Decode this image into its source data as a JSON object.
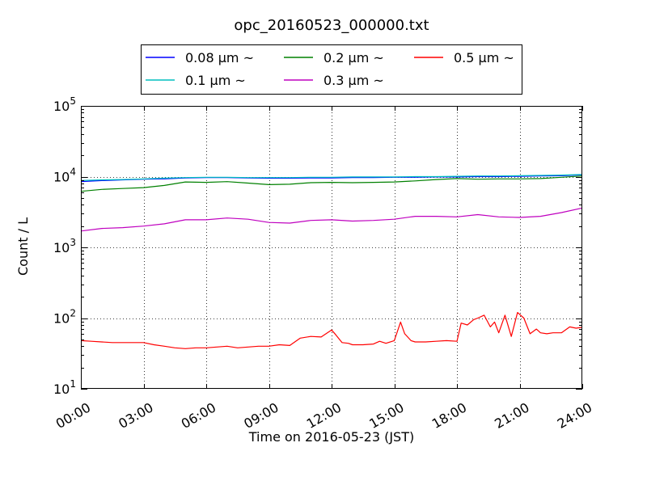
{
  "chart_data": {
    "type": "line",
    "title": "opc_20160523_000000.txt",
    "xlabel": "Time on 2016-05-23 (JST)",
    "ylabel": "Count / L",
    "y_scale": "log",
    "ylim": [
      10,
      100000
    ],
    "xlim": [
      0,
      24
    ],
    "grid": true,
    "grid_style": "dotted",
    "legend_placement": "top-center",
    "x_ticks": [
      {
        "value": 0,
        "label": "00:00"
      },
      {
        "value": 3,
        "label": "03:00"
      },
      {
        "value": 6,
        "label": "06:00"
      },
      {
        "value": 9,
        "label": "09:00"
      },
      {
        "value": 12,
        "label": "12:00"
      },
      {
        "value": 15,
        "label": "15:00"
      },
      {
        "value": 18,
        "label": "18:00"
      },
      {
        "value": 21,
        "label": "21:00"
      },
      {
        "value": 24,
        "label": "24:00"
      }
    ],
    "y_ticks": [
      {
        "value": 10,
        "base": "10",
        "exp": "1"
      },
      {
        "value": 100,
        "base": "10",
        "exp": "2"
      },
      {
        "value": 1000,
        "base": "10",
        "exp": "3"
      },
      {
        "value": 10000,
        "base": "10",
        "exp": "4"
      },
      {
        "value": 100000,
        "base": "10",
        "exp": "5"
      }
    ],
    "series": [
      {
        "name": "0.08 μm ~",
        "color": "#0000ff",
        "x": [
          0,
          1,
          2,
          3,
          4,
          5,
          6,
          7,
          8,
          9,
          10,
          11,
          12,
          13,
          14,
          15,
          16,
          17,
          18,
          19,
          20,
          21,
          22,
          23,
          24
        ],
        "y": [
          8500,
          8800,
          9000,
          9200,
          9300,
          9600,
          9700,
          9700,
          9600,
          9500,
          9500,
          9600,
          9600,
          9700,
          9700,
          9800,
          9800,
          9900,
          9900,
          10000,
          10000,
          10100,
          10200,
          10300,
          10600
        ]
      },
      {
        "name": "0.1 μm ~",
        "color": "#00bfbf",
        "x": [
          0,
          1,
          2,
          3,
          4,
          5,
          6,
          7,
          8,
          9,
          10,
          11,
          12,
          13,
          14,
          15,
          16,
          17,
          18,
          19,
          20,
          21,
          22,
          23,
          24
        ],
        "y": [
          8800,
          9000,
          9100,
          9300,
          9500,
          9700,
          9800,
          9800,
          9700,
          9700,
          9700,
          9800,
          9800,
          9900,
          9900,
          9900,
          10000,
          10000,
          10100,
          10200,
          10200,
          10300,
          10400,
          10500,
          10700
        ]
      },
      {
        "name": "0.2 μm ~",
        "color": "#008000",
        "x": [
          0,
          1,
          2,
          3,
          4,
          5,
          6,
          7,
          8,
          9,
          10,
          11,
          12,
          13,
          14,
          15,
          16,
          17,
          18,
          19,
          20,
          21,
          22,
          23,
          24
        ],
        "y": [
          6200,
          6600,
          6800,
          7000,
          7500,
          8400,
          8300,
          8500,
          8100,
          7700,
          7800,
          8200,
          8300,
          8200,
          8300,
          8400,
          8700,
          9100,
          9400,
          9200,
          9300,
          9300,
          9400,
          9800,
          10200
        ]
      },
      {
        "name": "0.3 μm ~",
        "color": "#bf00bf",
        "x": [
          0,
          1,
          2,
          3,
          4,
          5,
          6,
          7,
          8,
          9,
          10,
          11,
          12,
          13,
          14,
          15,
          16,
          17,
          18,
          19,
          20,
          21,
          22,
          23,
          24
        ],
        "y": [
          1700,
          1850,
          1900,
          2000,
          2150,
          2450,
          2450,
          2600,
          2500,
          2250,
          2200,
          2400,
          2450,
          2350,
          2400,
          2500,
          2750,
          2750,
          2700,
          2900,
          2700,
          2650,
          2750,
          3100,
          3600
        ]
      },
      {
        "name": "0.5 μm ~",
        "color": "#ff0000",
        "x": [
          0,
          0.5,
          1,
          1.5,
          2,
          2.5,
          3,
          3.5,
          4,
          4.5,
          5,
          5.5,
          6,
          6.5,
          7,
          7.5,
          8,
          8.5,
          9,
          9.5,
          10,
          10.5,
          11,
          11.5,
          12,
          12.2,
          12.5,
          12.8,
          13,
          13.5,
          14,
          14.3,
          14.6,
          15,
          15.3,
          15.5,
          15.8,
          16,
          16.5,
          17,
          17.5,
          18,
          18.2,
          18.5,
          18.8,
          19,
          19.3,
          19.6,
          19.8,
          20,
          20.3,
          20.6,
          20.9,
          21.2,
          21.5,
          21.8,
          22,
          22.3,
          22.6,
          23,
          23.4,
          23.7,
          24
        ],
        "y": [
          48,
          47,
          46,
          45,
          45,
          45,
          45,
          42,
          40,
          38,
          37,
          38,
          38,
          39,
          40,
          38,
          39,
          40,
          40,
          42,
          41,
          52,
          55,
          54,
          68,
          58,
          45,
          44,
          42,
          42,
          43,
          47,
          44,
          48,
          88,
          60,
          48,
          46,
          46,
          47,
          48,
          47,
          85,
          80,
          95,
          100,
          110,
          75,
          88,
          62,
          110,
          55,
          120,
          100,
          60,
          70,
          62,
          60,
          62,
          62,
          75,
          72,
          74
        ]
      }
    ]
  }
}
